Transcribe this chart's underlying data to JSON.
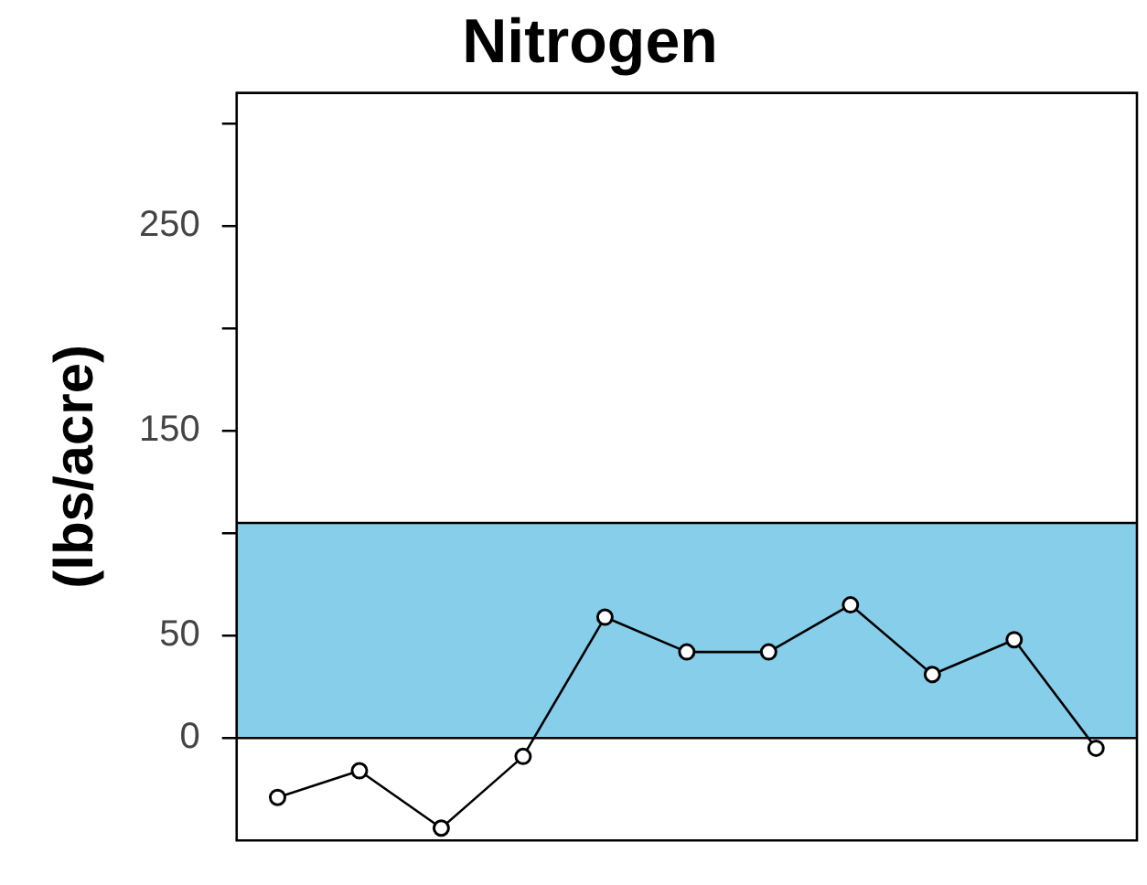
{
  "chart_data": {
    "type": "line",
    "title": "Nitrogen",
    "ylabel": "(lbs/acre)",
    "categories": [
      null,
      null,
      null,
      null,
      null,
      null,
      null,
      null,
      null,
      null,
      null
    ],
    "series": [
      {
        "color": "#000000",
        "values": [
          -29,
          -16,
          -44,
          -9,
          59,
          42,
          42,
          65,
          31,
          48,
          -5
        ]
      }
    ],
    "ylim": [
      -50,
      315
    ],
    "yticks": [
      0,
      50,
      {
        "value": 100,
        "label": null
      },
      150,
      {
        "value": 200,
        "label": null
      },
      250,
      {
        "value": 300,
        "label": null
      }
    ],
    "ref_lines": [
      {
        "axis": "y",
        "value": 0,
        "color": "#000000"
      }
    ],
    "bands": [
      {
        "axis": "y",
        "from": 0,
        "to": 105,
        "color": "#87ceeb"
      }
    ],
    "marker": "circle",
    "line_style": "solid",
    "grid": false,
    "legend": false
  }
}
